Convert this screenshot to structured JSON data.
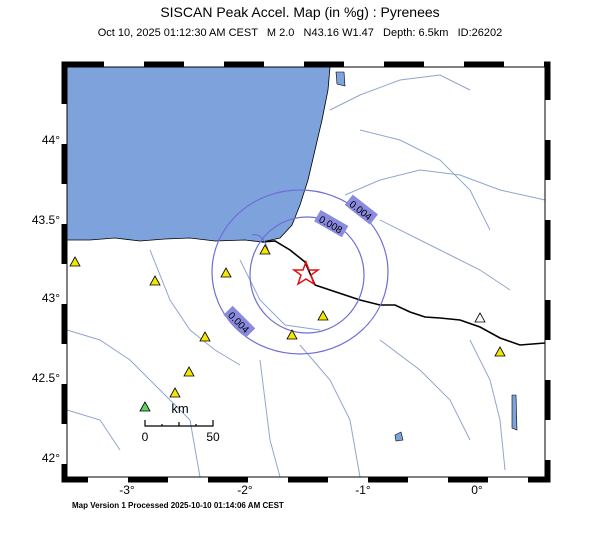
{
  "header": {
    "title": "SISCAN Peak Accel. Map (in %g) : Pyrenees",
    "subtitle": "Oct 10, 2025 01:12:30 AM CEST   M 2.0   N43.16 W1.47   Depth: 6.5km   ID:26202"
  },
  "map": {
    "lat_labels": [
      "44°",
      "43.5°",
      "43°",
      "42.5°",
      "42°"
    ],
    "lon_labels": [
      "-3°",
      "-2°",
      "-1°",
      "0°"
    ],
    "contour_labels": [
      "0.004",
      "0.008",
      "0.004"
    ],
    "scale": {
      "unit": "km",
      "labels": [
        "0",
        "50"
      ]
    }
  },
  "footer": "Map Version 1 Processed 2025-10-10 01:14:06 AM CEST"
}
